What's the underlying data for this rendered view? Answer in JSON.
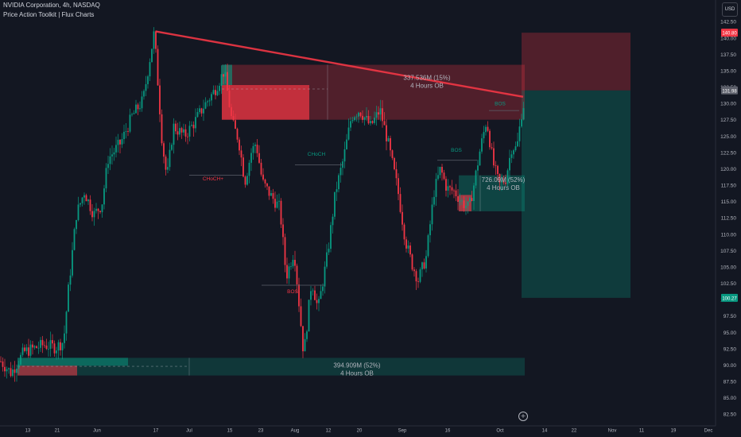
{
  "header": {
    "title": "NVIDIA Corporation, 4h, NASDAQ",
    "indicator": "Price Action Toolkit | Flux Charts",
    "currency": "USD"
  },
  "chart_data": {
    "type": "candlestick",
    "symbol": "NVIDIA Corporation",
    "interval": "4h",
    "exchange": "NASDAQ",
    "ylim": [
      80.7,
      145.8
    ],
    "y_ticks": [
      82.5,
      85.0,
      87.5,
      90.0,
      92.5,
      95.0,
      97.5,
      100.0,
      102.5,
      105.0,
      107.5,
      110.0,
      112.5,
      115.0,
      117.5,
      120.0,
      122.5,
      125.0,
      127.5,
      130.0,
      132.5,
      135.0,
      137.5,
      140.0,
      142.5
    ],
    "y_tick_labels": [
      "82.50",
      "85.00",
      "87.50",
      "90.00",
      "92.50",
      "95.00",
      "97.50",
      "100.00",
      "102.50",
      "105.00",
      "107.50",
      "110.00",
      "112.50",
      "115.00",
      "117.50",
      "120.00",
      "122.50",
      "125.00",
      "127.50",
      "130.00",
      "132.50",
      "135.00",
      "137.50",
      "140.00",
      "142.50"
    ],
    "x_labels": [
      "13",
      "21",
      "Jun",
      "17",
      "Jul",
      "15",
      "23",
      "Aug",
      "12",
      "20",
      "Sep",
      "16",
      "Oct",
      "14",
      "22",
      "Nov",
      "11",
      "19",
      "Dec"
    ],
    "price_labels": [
      {
        "value": 140.8,
        "text": "140.80",
        "color": "#f23645"
      },
      {
        "value": 131.98,
        "text": "131.98",
        "color": "#5d606b"
      },
      {
        "value": 100.27,
        "text": "100.27",
        "color": "#089981"
      }
    ],
    "order_blocks": [
      {
        "label_line1": "337.536M (15%)",
        "label_line2": "4 Hours OB",
        "top": 135.9,
        "bottom": 127.5,
        "kind": "bearish"
      },
      {
        "label_line1": "726.09M (52%)",
        "label_line2": "4 Hours OB",
        "top": 119.0,
        "bottom": 113.5,
        "kind": "bullish"
      },
      {
        "label_line1": "394.909M (52%)",
        "label_line2": "4 Hours OB",
        "top": 91.1,
        "bottom": 88.4,
        "kind": "bullish"
      }
    ],
    "structure_labels": [
      {
        "text": "CHoCH+",
        "color": "#f23645"
      },
      {
        "text": "CHoCH",
        "color": "#089981"
      },
      {
        "text": "BOS",
        "color": "#f23645"
      },
      {
        "text": "BOS",
        "color": "#089981"
      },
      {
        "text": "BOS",
        "color": "#089981"
      }
    ],
    "trendline": {
      "from": 141.0,
      "to": 131.0
    },
    "target_zone": {
      "top": 140.8,
      "entry": 131.98,
      "stop": 100.27
    },
    "anchors": [
      [
        0,
        90.7
      ],
      [
        14,
        88.8
      ],
      [
        30,
        92.0
      ],
      [
        44,
        92.6
      ],
      [
        55,
        93.1
      ],
      [
        70,
        92.7
      ],
      [
        80,
        93.6
      ],
      [
        86,
        101.5
      ],
      [
        96,
        113.0
      ],
      [
        106,
        116.5
      ],
      [
        118,
        113.0
      ],
      [
        128,
        114.5
      ],
      [
        136,
        121.5
      ],
      [
        152,
        124.0
      ],
      [
        166,
        128.0
      ],
      [
        180,
        130.5
      ],
      [
        194,
        140.9
      ],
      [
        204,
        124.0
      ],
      [
        210,
        118.5
      ],
      [
        218,
        126.5
      ],
      [
        232,
        125.0
      ],
      [
        244,
        127.0
      ],
      [
        256,
        129.5
      ],
      [
        270,
        132.0
      ],
      [
        282,
        135.0
      ],
      [
        292,
        127.0
      ],
      [
        300,
        124.5
      ],
      [
        308,
        118.0
      ],
      [
        316,
        122.5
      ],
      [
        322,
        124.0
      ],
      [
        330,
        118.0
      ],
      [
        340,
        116.0
      ],
      [
        352,
        114.0
      ],
      [
        360,
        103.5
      ],
      [
        370,
        107.5
      ],
      [
        382,
        91.5
      ],
      [
        392,
        103.0
      ],
      [
        400,
        98.5
      ],
      [
        412,
        107.0
      ],
      [
        422,
        116.5
      ],
      [
        432,
        121.5
      ],
      [
        442,
        128.0
      ],
      [
        452,
        129.0
      ],
      [
        466,
        126.5
      ],
      [
        478,
        129.0
      ],
      [
        488,
        124.0
      ],
      [
        500,
        117.0
      ],
      [
        510,
        109.0
      ],
      [
        518,
        105.5
      ],
      [
        526,
        103.0
      ],
      [
        536,
        106.5
      ],
      [
        546,
        116.5
      ],
      [
        554,
        120.0
      ],
      [
        562,
        117.0
      ],
      [
        572,
        116.5
      ],
      [
        580,
        115.0
      ],
      [
        590,
        114.0
      ],
      [
        596,
        117.5
      ],
      [
        604,
        123.0
      ],
      [
        612,
        127.5
      ],
      [
        620,
        121.0
      ],
      [
        628,
        117.5
      ],
      [
        636,
        118.5
      ],
      [
        644,
        123.5
      ],
      [
        650,
        123.0
      ],
      [
        656,
        128.5
      ],
      [
        660,
        130.5
      ]
    ]
  }
}
